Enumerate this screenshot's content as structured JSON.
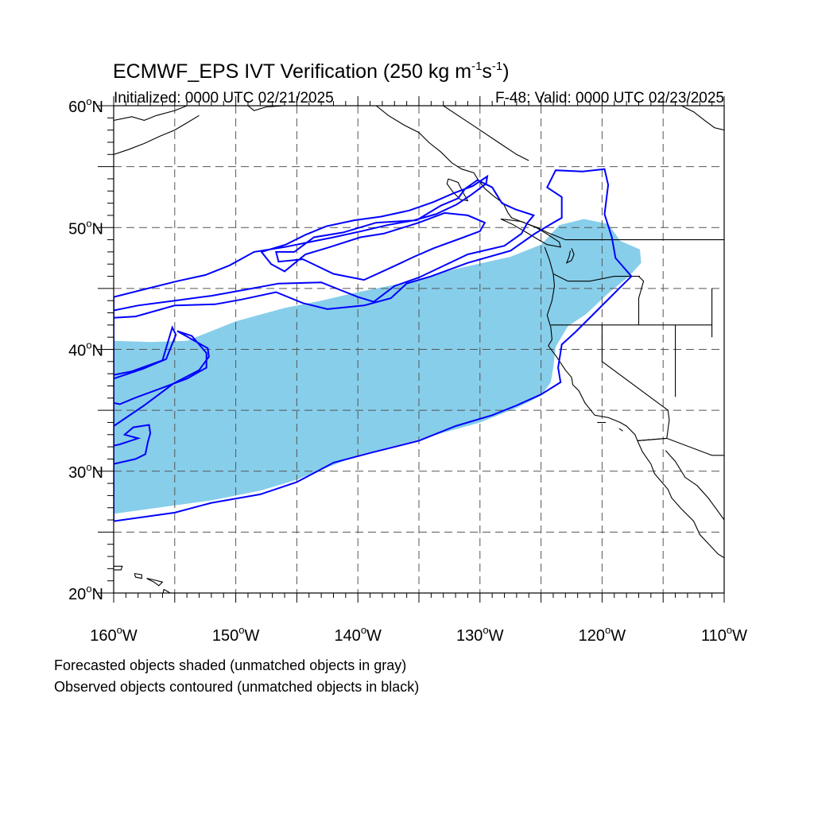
{
  "title": {
    "main": "ECMWF_EPS IVT Verification (250 kg m",
    "sup1": "-1",
    "mid": "s",
    "sup2": "-1",
    "end": ")"
  },
  "subtitle_left": "Initialized: 0000 UTC 02/21/2025",
  "subtitle_right": "F-48: Valid: 0000 UTC 02/23/2025",
  "lat_labels": [
    {
      "lat": 60,
      "text": "60"
    },
    {
      "lat": 50,
      "text": "50"
    },
    {
      "lat": 40,
      "text": "40"
    },
    {
      "lat": 30,
      "text": "30"
    },
    {
      "lat": 20,
      "text": "20"
    }
  ],
  "lat_suffix": "N",
  "lon_labels": [
    {
      "lon": -160,
      "text": "160"
    },
    {
      "lon": -150,
      "text": "150"
    },
    {
      "lon": -140,
      "text": "140"
    },
    {
      "lon": -130,
      "text": "130"
    },
    {
      "lon": -120,
      "text": "120"
    },
    {
      "lon": -110,
      "text": "110"
    }
  ],
  "lon_suffix": "W",
  "degree": "o",
  "footnotes": [
    "Forecasted objects shaded (unmatched objects in gray)",
    "Observed objects contoured (unmatched objects in black)"
  ],
  "colors": {
    "forecast_fill": "#87ceea",
    "observed_contour": "#0000ff",
    "grid": "#555555",
    "coast": "#000000"
  },
  "map": {
    "lon_range": [
      -160,
      -110
    ],
    "lat_range": [
      20,
      60
    ],
    "grid_lon_step": 5,
    "grid_lat_step": 5,
    "forecast_object": [
      [
        -160,
        26.5
      ],
      [
        -155,
        27.2
      ],
      [
        -152,
        27.6
      ],
      [
        -148,
        28.4
      ],
      [
        -145,
        29.3
      ],
      [
        -140,
        31.3
      ],
      [
        -135,
        32.6
      ],
      [
        -130,
        34.0
      ],
      [
        -127,
        35.2
      ],
      [
        -125,
        36.2
      ],
      [
        -124.2,
        37.3
      ],
      [
        -124.0,
        38.5
      ],
      [
        -123.8,
        40.2
      ],
      [
        -122.8,
        41.9
      ],
      [
        -121.3,
        42.9
      ],
      [
        -119.5,
        44.6
      ],
      [
        -117.8,
        46.0
      ],
      [
        -116.8,
        47.1
      ],
      [
        -116.9,
        48.2
      ],
      [
        -118.5,
        48.9
      ],
      [
        -119.5,
        50.3
      ],
      [
        -121.5,
        50.7
      ],
      [
        -123.5,
        50.2
      ],
      [
        -125,
        48.6
      ],
      [
        -127.5,
        47.6
      ],
      [
        -132,
        46.6
      ],
      [
        -136,
        45.5
      ],
      [
        -140,
        44.7
      ],
      [
        -143,
        44.0
      ],
      [
        -146,
        43.4
      ],
      [
        -150,
        42.3
      ],
      [
        -154,
        40.7
      ],
      [
        -157,
        40.6
      ],
      [
        -160,
        40.7
      ]
    ],
    "observed_objects": [
      [
        [
          -160,
          25.9
        ],
        [
          -155,
          26.6
        ],
        [
          -152,
          27.4
        ],
        [
          -148,
          28.1
        ],
        [
          -145,
          29.1
        ],
        [
          -142,
          30.7
        ],
        [
          -139,
          31.5
        ],
        [
          -135,
          32.5
        ],
        [
          -132,
          33.7
        ],
        [
          -129,
          34.6
        ],
        [
          -127,
          35.4
        ],
        [
          -125,
          36.3
        ],
        [
          -123.4,
          37.3
        ],
        [
          -123.6,
          38.5
        ],
        [
          -123.3,
          40.4
        ],
        [
          -122.2,
          41.4
        ],
        [
          -120.5,
          43.1
        ],
        [
          -118.5,
          45.1
        ],
        [
          -117.6,
          46.0
        ],
        [
          -118.9,
          47.5
        ],
        [
          -119.2,
          49.2
        ],
        [
          -119.8,
          51.1
        ],
        [
          -119.5,
          53.5
        ],
        [
          -119.8,
          54.8
        ],
        [
          -121.6,
          54.6
        ],
        [
          -123.8,
          54.7
        ],
        [
          -124.5,
          53.3
        ],
        [
          -123.3,
          52.5
        ],
        [
          -123.3,
          50.8
        ],
        [
          -124.0,
          50.4
        ],
        [
          -125.5,
          49.5
        ],
        [
          -127.5,
          48.1
        ],
        [
          -131,
          47.1
        ],
        [
          -134,
          46.0
        ],
        [
          -136,
          45.4
        ],
        [
          -137.3,
          44.2
        ],
        [
          -139.5,
          43.6
        ],
        [
          -142.5,
          43.3
        ],
        [
          -144.5,
          43.8
        ],
        [
          -146.7,
          44.7
        ],
        [
          -149.5,
          44.1
        ],
        [
          -151.7,
          43.7
        ],
        [
          -155,
          43.6
        ],
        [
          -158.2,
          42.7
        ],
        [
          -160,
          42.6
        ],
        [
          -160,
          43.2
        ],
        [
          -158,
          43.6
        ],
        [
          -155,
          44.0
        ],
        [
          -152,
          44.4
        ],
        [
          -149.2,
          44.9
        ],
        [
          -146.5,
          45.4
        ],
        [
          -143,
          45.5
        ],
        [
          -140,
          44.3
        ],
        [
          -138.7,
          43.9
        ],
        [
          -137,
          45.2
        ],
        [
          -135,
          45.9
        ],
        [
          -131,
          47.8
        ],
        [
          -128,
          48.5
        ],
        [
          -126.6,
          49.5
        ],
        [
          -126.1,
          50.4
        ],
        [
          -125.6,
          51.0
        ],
        [
          -127.1,
          51.5
        ],
        [
          -128.2,
          52.0
        ],
        [
          -129,
          53.3
        ],
        [
          -130.2,
          53.9
        ],
        [
          -131.2,
          53.2
        ],
        [
          -131.8,
          52.4
        ],
        [
          -133.2,
          51.8
        ],
        [
          -135.2,
          50.6
        ],
        [
          -138.5,
          50.4
        ],
        [
          -141.2,
          49.6
        ],
        [
          -143.6,
          49.2
        ],
        [
          -145.2,
          48.0
        ],
        [
          -146.7,
          48.0
        ],
        [
          -146.5,
          47.2
        ],
        [
          -144.5,
          47.4
        ],
        [
          -142,
          46.2
        ],
        [
          -139.5,
          45.7
        ],
        [
          -137.1,
          46.8
        ],
        [
          -135.4,
          47.6
        ],
        [
          -133.8,
          48.3
        ],
        [
          -131.6,
          49.1
        ],
        [
          -130.0,
          49.7
        ],
        [
          -129.6,
          50.4
        ],
        [
          -131.0,
          51.0
        ],
        [
          -132.9,
          51.2
        ],
        [
          -135.0,
          50.4
        ],
        [
          -137.9,
          49.5
        ],
        [
          -139.8,
          49.2
        ],
        [
          -142.3,
          48.4
        ],
        [
          -144.3,
          47.8
        ],
        [
          -146.0,
          46.4
        ],
        [
          -147.1,
          47.0
        ],
        [
          -147.9,
          48.0
        ],
        [
          -145.9,
          48.6
        ],
        [
          -144.3,
          49.4
        ],
        [
          -142.6,
          50.1
        ],
        [
          -140.3,
          50.6
        ],
        [
          -138.1,
          50.9
        ],
        [
          -135.8,
          51.4
        ],
        [
          -133.8,
          52.1
        ],
        [
          -132.2,
          52.8
        ],
        [
          -130.6,
          53.4
        ],
        [
          -129.4,
          54.2
        ],
        [
          -129.5,
          53.6
        ],
        [
          -130.7,
          52.7
        ],
        [
          -131.9,
          51.9
        ],
        [
          -133.6,
          51.1
        ],
        [
          -135.4,
          50.6
        ],
        [
          -137.6,
          50.2
        ],
        [
          -139.7,
          49.7
        ],
        [
          -142.0,
          49.2
        ],
        [
          -144.0,
          48.8
        ],
        [
          -146.0,
          48.4
        ],
        [
          -148.5,
          48.0
        ],
        [
          -150.5,
          46.9
        ],
        [
          -152.5,
          46.1
        ],
        [
          -154.8,
          45.6
        ],
        [
          -157.6,
          44.9
        ],
        [
          -160,
          44.3
        ],
        [
          -160,
          42.6
        ]
      ]
    ],
    "observed_objects_extra": [
      [
        [
          -160,
          33.7
        ],
        [
          -157.5,
          35.4
        ],
        [
          -155.1,
          37.2
        ],
        [
          -153.0,
          38.3
        ],
        [
          -152.2,
          39.4
        ],
        [
          -152.3,
          40.1
        ],
        [
          -153.2,
          40.6
        ],
        [
          -154.8,
          41.5
        ],
        [
          -153.6,
          41.1
        ],
        [
          -152.4,
          39.7
        ],
        [
          -152.4,
          38.5
        ],
        [
          -154.0,
          37.6
        ],
        [
          -156.4,
          36.7
        ],
        [
          -158.3,
          36.0
        ],
        [
          -159.5,
          35.5
        ],
        [
          -160,
          35.6
        ],
        [
          -160,
          37.6
        ],
        [
          -157.6,
          38.4
        ],
        [
          -155.7,
          39.2
        ],
        [
          -154.9,
          41.2
        ],
        [
          -155.2,
          41.8
        ],
        [
          -156.0,
          39.1
        ],
        [
          -158.5,
          38.2
        ],
        [
          -160,
          37.9
        ]
      ],
      [
        [
          -160,
          30.6
        ],
        [
          -158.2,
          31.0
        ],
        [
          -157.4,
          31.4
        ],
        [
          -157.2,
          32.4
        ],
        [
          -157.0,
          33.1
        ],
        [
          -157.1,
          33.8
        ],
        [
          -158.4,
          33.6
        ],
        [
          -159.1,
          33.0
        ],
        [
          -158.0,
          32.7
        ],
        [
          -159.5,
          32.2
        ],
        [
          -160,
          32.1
        ]
      ]
    ]
  }
}
